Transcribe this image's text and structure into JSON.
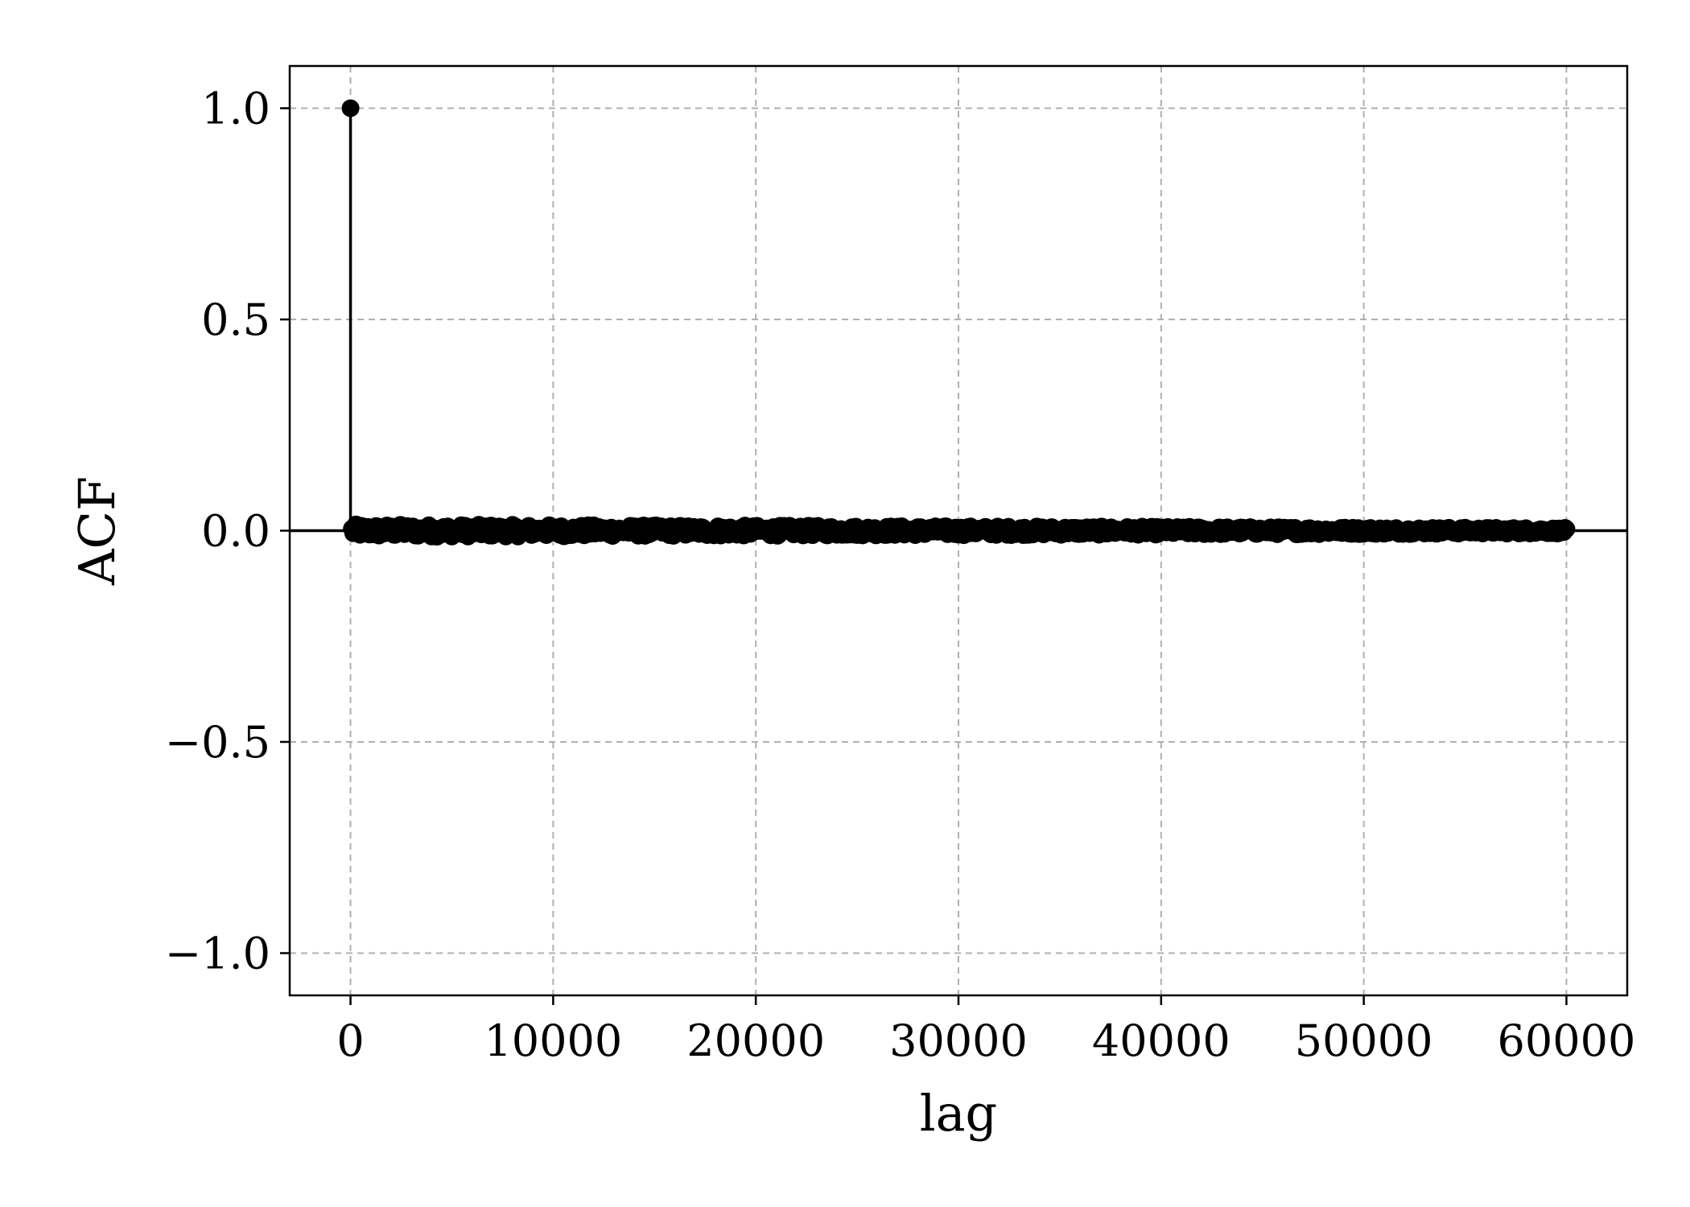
{
  "chart_data": {
    "type": "scatter",
    "subtype": "stem",
    "title": "",
    "xlabel": "lag",
    "ylabel": "ACF",
    "xlim": [
      -3000,
      63000
    ],
    "ylim": [
      -1.1,
      1.1
    ],
    "x_ticks": [
      0,
      10000,
      20000,
      30000,
      40000,
      50000,
      60000
    ],
    "x_tick_labels": [
      "0",
      "10000",
      "20000",
      "30000",
      "40000",
      "50000",
      "60000"
    ],
    "y_ticks": [
      -1.0,
      -0.5,
      0.0,
      0.5,
      1.0
    ],
    "y_tick_labels": [
      "−1.0",
      "−0.5",
      "0.0",
      "0.5",
      "1.0"
    ],
    "grid": true,
    "baseline": 0.0,
    "lag_range": [
      0,
      60000
    ],
    "noise_amplitude": 0.015,
    "series": [
      {
        "values": [
          {
            "x": 0,
            "y": 1.0
          }
        ]
      }
    ],
    "colors": {
      "marker": "#000000",
      "stem": "#000000",
      "baseline": "#000000",
      "grid": "#b0b0b0"
    }
  }
}
